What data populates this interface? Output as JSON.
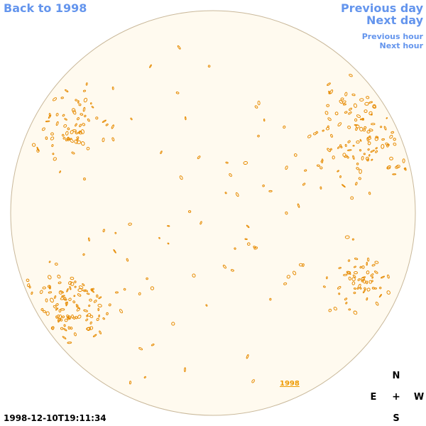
{
  "nav": {
    "back": "Back to 1998",
    "previous_day": "Previous day",
    "next_day": "Next day",
    "previous_hour": "Previous hour",
    "next_hour": "Next hour"
  },
  "disk": {
    "year_label": "1998"
  },
  "compass": {
    "north": "N",
    "south": "S",
    "east": "E",
    "west": "W",
    "center": "+"
  },
  "timestamp": "1998-12-10T19:11:34",
  "colors": {
    "link": "#6495ed",
    "disk_fill": "#fffaef",
    "disk_edge": "#c9b89a",
    "contour": "#e68a00"
  }
}
